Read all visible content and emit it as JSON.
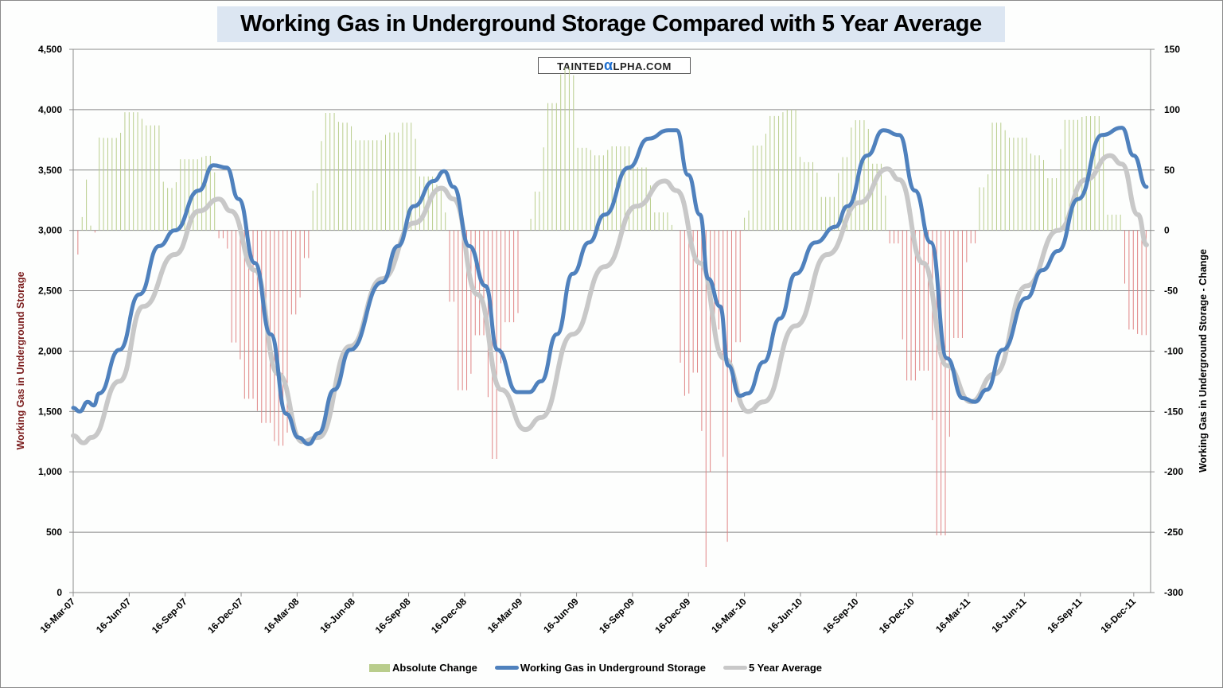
{
  "chart_data": {
    "type": "bar+line",
    "title": "Working Gas in Underground Storage Compared with 5 Year Average",
    "watermark": "TAINTEDαLPHA.COM",
    "x_unit": "weeks since 16-Mar-07",
    "x_range": [
      0,
      252
    ],
    "x_tick_labels": [
      "16-Mar-07",
      "16-Jun-07",
      "16-Sep-07",
      "16-Dec-07",
      "16-Mar-08",
      "16-Jun-08",
      "16-Sep-08",
      "16-Dec-08",
      "16-Mar-09",
      "16-Jun-09",
      "16-Sep-09",
      "16-Dec-09",
      "16-Mar-10",
      "16-Jun-10",
      "16-Sep-10",
      "16-Dec-10",
      "16-Mar-11",
      "16-Jun-11",
      "16-Sep-11",
      "16-Dec-11"
    ],
    "x_tick_weeks": [
      0,
      13.1,
      26.2,
      39.3,
      52.4,
      65.5,
      78.5,
      91.6,
      104.7,
      117.8,
      130.9,
      144,
      157.1,
      170.2,
      183.3,
      196.4,
      209.5,
      222.6,
      235.7,
      248.2
    ],
    "left_axis": {
      "label": "Working Gas in Underground Storage",
      "range": [
        0,
        4500
      ],
      "ticks": [
        "0",
        "500",
        "1,000",
        "1,500",
        "2,000",
        "2,500",
        "3,000",
        "3,500",
        "4,000",
        "4,500"
      ]
    },
    "right_axis": {
      "label": "Working Gas in Underground Storage - Change",
      "range": [
        -300,
        150
      ],
      "ticks": [
        "-300",
        "-250",
        "-200",
        "-150",
        "-100",
        "-50",
        "0",
        "50",
        "100",
        "150"
      ]
    },
    "grid": true,
    "legend_position": "bottom",
    "series": [
      {
        "name": "Absolute Change",
        "type": "bar",
        "axis": "right",
        "color": "#b9cd8c",
        "negative_color": "#e08585",
        "derived_from": "Working Gas in Underground Storage (weekly difference)"
      },
      {
        "name": "Working Gas in Underground Storage",
        "type": "line",
        "axis": "left",
        "color": "#4f81bd",
        "points": [
          [
            0,
            1530
          ],
          [
            1.5,
            1500
          ],
          [
            3.4,
            1580
          ],
          [
            4.8,
            1550
          ],
          [
            6.1,
            1650
          ],
          [
            10.8,
            2010
          ],
          [
            15.5,
            2470
          ],
          [
            20.1,
            2870
          ],
          [
            23.8,
            3000
          ],
          [
            29.4,
            3330
          ],
          [
            32.8,
            3540
          ],
          [
            35.9,
            3520
          ],
          [
            38.7,
            3260
          ],
          [
            42.5,
            2730
          ],
          [
            46.2,
            2140
          ],
          [
            49.9,
            1480
          ],
          [
            52.7,
            1285
          ],
          [
            55.1,
            1230
          ],
          [
            57.4,
            1320
          ],
          [
            61.1,
            1680
          ],
          [
            64.8,
            2010
          ],
          [
            72.3,
            2570
          ],
          [
            76,
            2870
          ],
          [
            79.7,
            3200
          ],
          [
            84.4,
            3410
          ],
          [
            86.8,
            3490
          ],
          [
            89,
            3360
          ],
          [
            92.7,
            2870
          ],
          [
            96.5,
            2540
          ],
          [
            99.3,
            2010
          ],
          [
            103.9,
            1660
          ],
          [
            106.7,
            1660
          ],
          [
            109.5,
            1750
          ],
          [
            113.2,
            2140
          ],
          [
            116.9,
            2640
          ],
          [
            120.7,
            2900
          ],
          [
            124.4,
            3130
          ],
          [
            130,
            3520
          ],
          [
            134.6,
            3760
          ],
          [
            139.3,
            3830
          ],
          [
            141.2,
            3830
          ],
          [
            143.9,
            3460
          ],
          [
            146.7,
            3130
          ],
          [
            148.6,
            2600
          ],
          [
            151.4,
            2370
          ],
          [
            153.3,
            1880
          ],
          [
            156,
            1630
          ],
          [
            157.9,
            1650
          ],
          [
            161.6,
            1910
          ],
          [
            165.4,
            2270
          ],
          [
            169.1,
            2640
          ],
          [
            173.7,
            2900
          ],
          [
            178.4,
            3030
          ],
          [
            181.2,
            3200
          ],
          [
            185.8,
            3620
          ],
          [
            189.6,
            3830
          ],
          [
            193.3,
            3790
          ],
          [
            197,
            3330
          ],
          [
            200.7,
            2900
          ],
          [
            204.5,
            1940
          ],
          [
            208.2,
            1610
          ],
          [
            211,
            1580
          ],
          [
            213.8,
            1680
          ],
          [
            217.5,
            2010
          ],
          [
            223.1,
            2440
          ],
          [
            226.8,
            2670
          ],
          [
            230.5,
            2830
          ],
          [
            235.2,
            3260
          ],
          [
            240.8,
            3790
          ],
          [
            245.4,
            3850
          ],
          [
            248.2,
            3620
          ],
          [
            251.2,
            3360
          ]
        ]
      },
      {
        "name": "5 Year Average",
        "type": "line",
        "axis": "left",
        "color": "#c8c8c8",
        "points": [
          [
            0,
            1300
          ],
          [
            2.4,
            1240
          ],
          [
            4.3,
            1285
          ],
          [
            10.8,
            1750
          ],
          [
            16.4,
            2370
          ],
          [
            23.8,
            2800
          ],
          [
            29.4,
            3160
          ],
          [
            34.1,
            3260
          ],
          [
            36.9,
            3160
          ],
          [
            42.5,
            2670
          ],
          [
            48,
            1810
          ],
          [
            53.6,
            1250
          ],
          [
            57.4,
            1285
          ],
          [
            64.8,
            2040
          ],
          [
            72.3,
            2600
          ],
          [
            79.7,
            3060
          ],
          [
            86.2,
            3350
          ],
          [
            89,
            3260
          ],
          [
            94.6,
            2470
          ],
          [
            100.2,
            1680
          ],
          [
            105.8,
            1350
          ],
          [
            109.5,
            1450
          ],
          [
            116.9,
            2140
          ],
          [
            124.4,
            2700
          ],
          [
            131.8,
            3200
          ],
          [
            138.4,
            3410
          ],
          [
            141.2,
            3330
          ],
          [
            146.7,
            2730
          ],
          [
            152.3,
            1940
          ],
          [
            157.9,
            1500
          ],
          [
            161.6,
            1580
          ],
          [
            169.1,
            2210
          ],
          [
            176.5,
            2800
          ],
          [
            184,
            3230
          ],
          [
            190.5,
            3510
          ],
          [
            193.3,
            3420
          ],
          [
            198.9,
            2730
          ],
          [
            204.5,
            1880
          ],
          [
            210.1,
            1580
          ],
          [
            215.6,
            1810
          ],
          [
            223.1,
            2540
          ],
          [
            230.5,
            3000
          ],
          [
            237,
            3420
          ],
          [
            242.6,
            3620
          ],
          [
            245.4,
            3550
          ],
          [
            249.2,
            3130
          ],
          [
            251.2,
            2880
          ]
        ]
      }
    ]
  }
}
